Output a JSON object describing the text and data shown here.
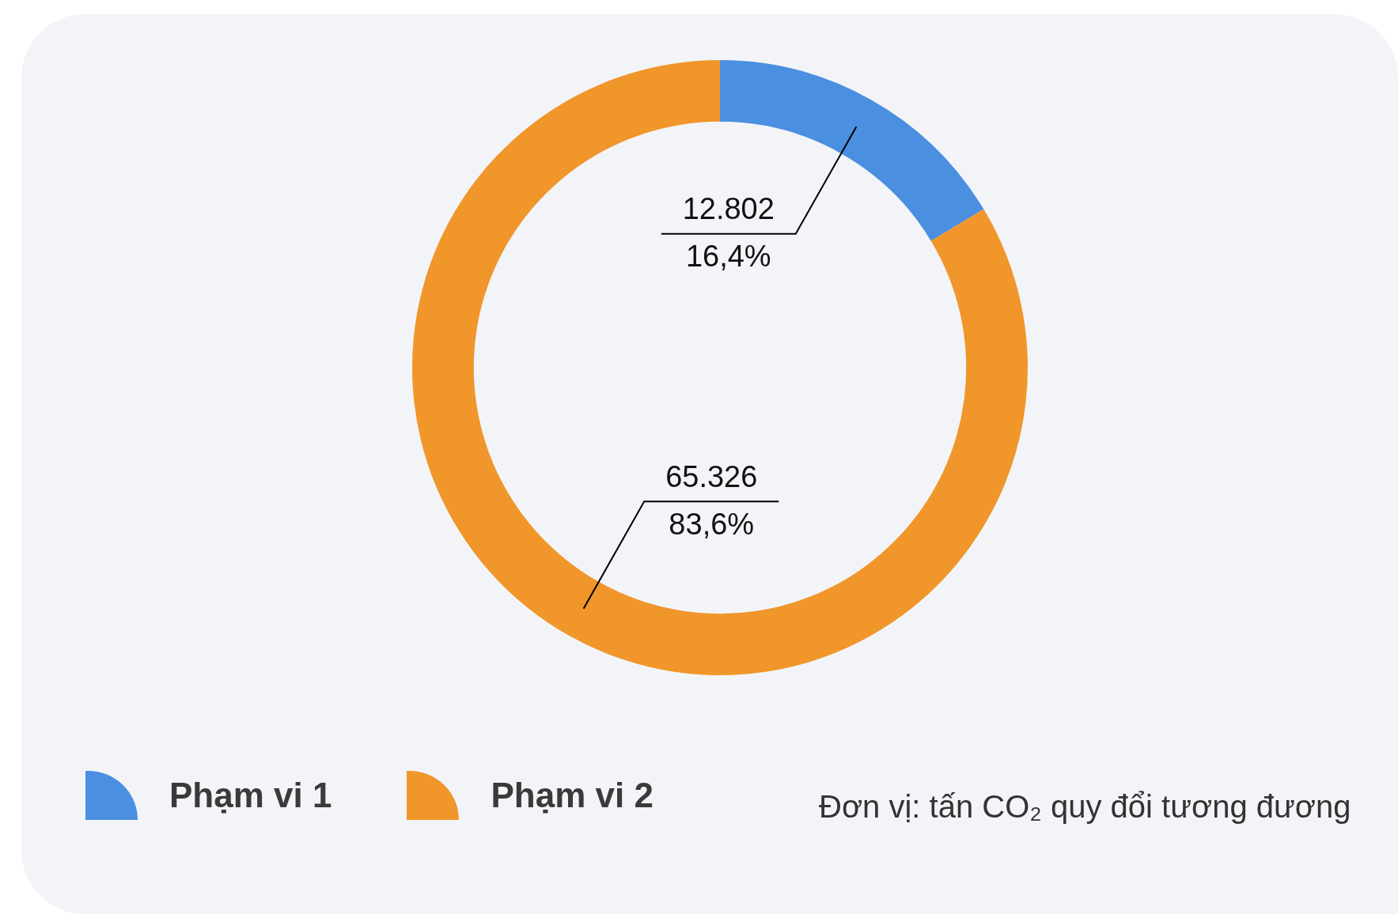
{
  "chart_data": {
    "type": "donut",
    "categories": [
      "Phạm vi 1",
      "Phạm vi 2"
    ],
    "values": [
      12802,
      65326
    ],
    "colors": [
      "#4a8fe0",
      "#f0962a"
    ],
    "value_labels": [
      "12.802",
      "65.326"
    ],
    "annotations": [
      "16,4%",
      "83,6%",
      "Đơn vị: tấn CO₂ quy đổi tương đương"
    ],
    "legend": "bottom"
  }
}
